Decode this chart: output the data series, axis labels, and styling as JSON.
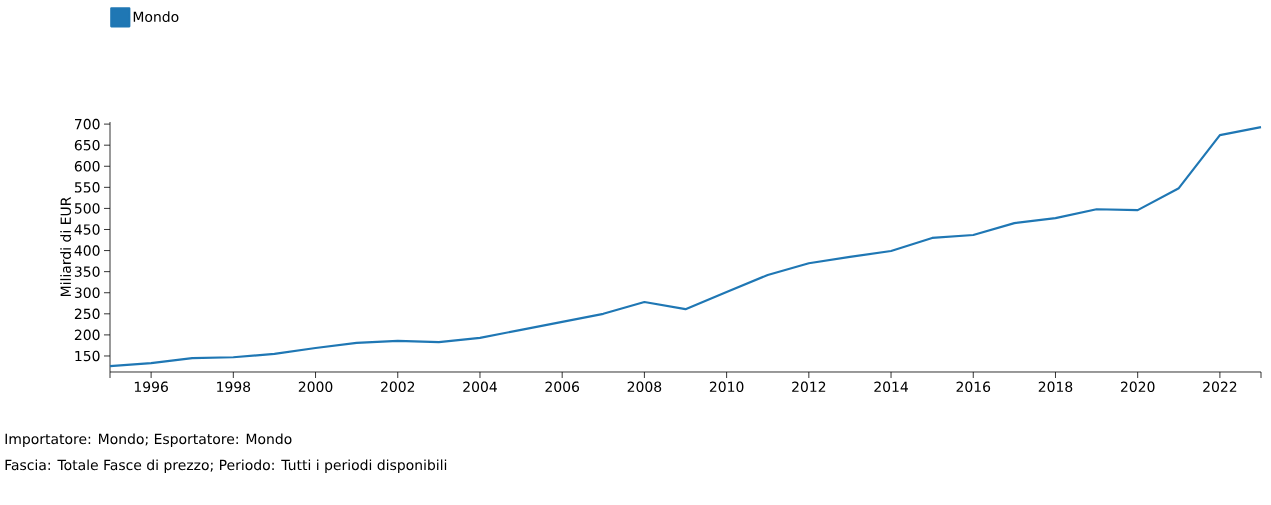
{
  "chart_data": {
    "type": "line",
    "ylabel": "Miliardi di EUR",
    "x": [
      1995,
      1996,
      1997,
      1998,
      1999,
      2000,
      2001,
      2002,
      2003,
      2004,
      2005,
      2006,
      2007,
      2008,
      2009,
      2010,
      2011,
      2012,
      2013,
      2014,
      2015,
      2016,
      2017,
      2018,
      2019,
      2020,
      2021,
      2022,
      2023
    ],
    "series": [
      {
        "name": "Mondo",
        "color": "#1f77b4",
        "values": [
          126,
          133,
          145,
          147,
          155,
          169,
          181,
          186,
          183,
          193,
          212,
          231,
          250,
          278,
          261,
          302,
          342,
          370,
          385,
          399,
          430,
          437,
          465,
          477,
          498,
          496,
          548,
          674,
          693
        ]
      }
    ],
    "xlim": [
      1995,
      2023
    ],
    "xticks": [
      {
        "value": 1995,
        "label": null
      },
      1996,
      1998,
      2000,
      2002,
      2004,
      2006,
      2008,
      2010,
      2012,
      2014,
      2016,
      2018,
      2020,
      2022,
      {
        "value": 2023,
        "label": null
      }
    ],
    "ylim": [
      112,
      705
    ],
    "yticks": [
      150,
      200,
      250,
      300,
      350,
      400,
      450,
      500,
      550,
      600,
      650,
      700
    ],
    "legend": "top left",
    "grid": false,
    "marker": "none",
    "line_style": "solid",
    "annotations": [
      "Importatore: Mondo; Esportatore: Mondo",
      "Fascia: Totale Fasce di prezzo; Periodo: Tutti i periodi disponibili"
    ]
  }
}
